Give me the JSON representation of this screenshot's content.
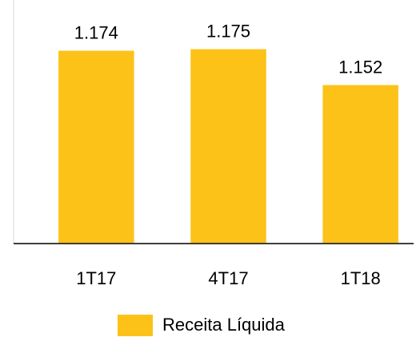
{
  "chart_data": {
    "type": "bar",
    "categories": [
      "1T17",
      "4T17",
      "1T18"
    ],
    "series": [
      {
        "name": "Receita Líquida",
        "color": "#fdc218",
        "values": [
          1.174,
          1.175,
          1.152
        ]
      }
    ],
    "ylim": [
      1.05,
      1.2
    ],
    "legend": "bottom"
  }
}
